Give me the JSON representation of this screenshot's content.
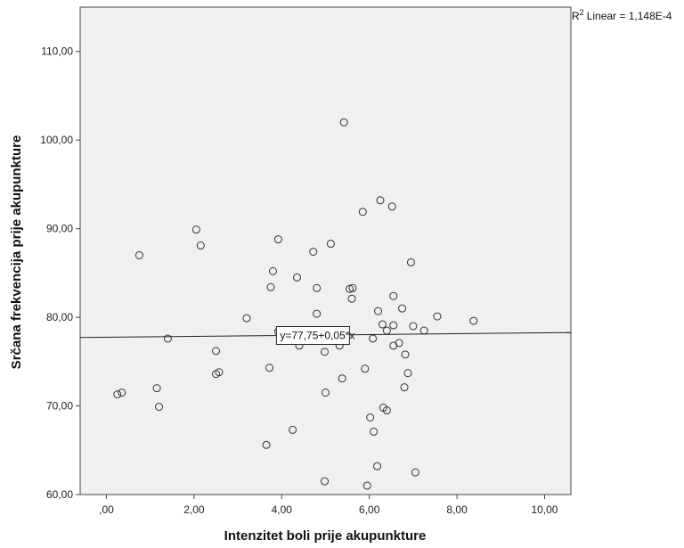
{
  "chart_data": {
    "type": "scatter",
    "xlabel": "Intenzitet boli prije akupunkture",
    "ylabel": "Srčana frekvencija prije akupunkture",
    "xlim": [
      -0.6,
      10.6
    ],
    "ylim": [
      60,
      115
    ],
    "x_ticks": [
      0,
      2,
      4,
      6,
      8,
      10
    ],
    "x_tick_labels": [
      ",00",
      "2,00",
      "4,00",
      "6,00",
      "8,00",
      "10,00"
    ],
    "y_ticks": [
      60,
      70,
      80,
      90,
      100,
      110
    ],
    "y_tick_labels": [
      "60,00",
      "70,00",
      "80,00",
      "90,00",
      "100,00",
      "110,00"
    ],
    "fit_line": {
      "intercept": 77.75,
      "slope": 0.05,
      "label": "y=77,75+0,05*x"
    },
    "r2_prefix": "R",
    "r2_sup": "2",
    "r2_text": "Linear = 1,148E-4",
    "background": "#f0f0f0",
    "point_color": "#333333",
    "points": [
      [
        0.25,
        71.3
      ],
      [
        0.35,
        71.5
      ],
      [
        0.75,
        87.0
      ],
      [
        1.15,
        72.0
      ],
      [
        1.2,
        69.9
      ],
      [
        1.4,
        77.6
      ],
      [
        2.05,
        89.9
      ],
      [
        2.15,
        88.1
      ],
      [
        2.5,
        76.2
      ],
      [
        2.5,
        73.6
      ],
      [
        2.57,
        73.8
      ],
      [
        3.2,
        79.9
      ],
      [
        3.65,
        65.6
      ],
      [
        3.72,
        74.3
      ],
      [
        3.75,
        83.4
      ],
      [
        3.8,
        85.2
      ],
      [
        3.92,
        88.8
      ],
      [
        3.92,
        78.4
      ],
      [
        4.25,
        67.3
      ],
      [
        4.35,
        84.5
      ],
      [
        4.4,
        76.8
      ],
      [
        4.72,
        87.4
      ],
      [
        4.8,
        83.3
      ],
      [
        4.8,
        80.4
      ],
      [
        4.98,
        76.1
      ],
      [
        5.0,
        71.5
      ],
      [
        4.98,
        61.5
      ],
      [
        5.12,
        88.3
      ],
      [
        5.32,
        76.8
      ],
      [
        5.38,
        73.1
      ],
      [
        5.42,
        102.0
      ],
      [
        5.55,
        83.2
      ],
      [
        5.62,
        83.3
      ],
      [
        5.6,
        82.1
      ],
      [
        5.85,
        91.9
      ],
      [
        5.9,
        74.2
      ],
      [
        5.95,
        61.0
      ],
      [
        6.02,
        68.7
      ],
      [
        6.1,
        67.1
      ],
      [
        6.08,
        77.6
      ],
      [
        6.18,
        63.2
      ],
      [
        6.2,
        80.7
      ],
      [
        6.25,
        93.2
      ],
      [
        6.3,
        79.2
      ],
      [
        6.32,
        69.8
      ],
      [
        6.4,
        69.5
      ],
      [
        6.4,
        78.5
      ],
      [
        6.52,
        92.5
      ],
      [
        6.55,
        82.4
      ],
      [
        6.55,
        79.1
      ],
      [
        6.55,
        76.8
      ],
      [
        6.68,
        77.1
      ],
      [
        6.75,
        81.0
      ],
      [
        6.8,
        72.1
      ],
      [
        6.82,
        75.8
      ],
      [
        6.88,
        73.7
      ],
      [
        6.95,
        86.2
      ],
      [
        7.0,
        79.0
      ],
      [
        7.05,
        62.5
      ],
      [
        7.25,
        78.5
      ],
      [
        7.55,
        80.1
      ],
      [
        8.38,
        79.6
      ]
    ]
  }
}
